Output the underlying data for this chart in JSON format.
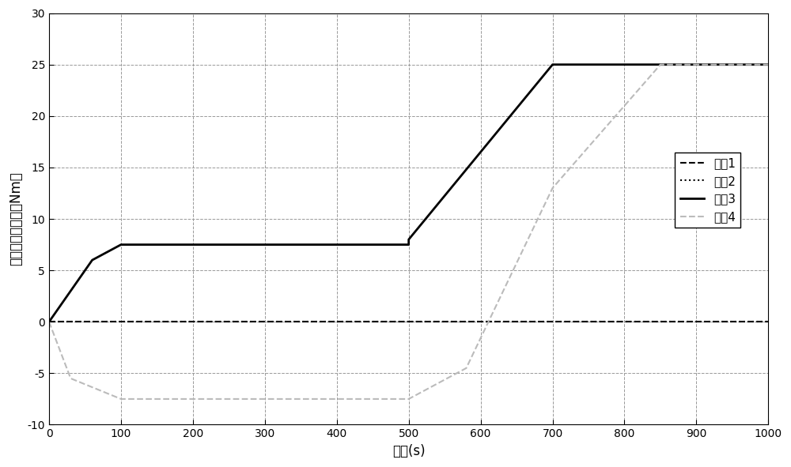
{
  "title": "",
  "xlabel": "时间(s)",
  "ylabel": "各飞轮的角动量（Nm）",
  "xlim": [
    0,
    1000
  ],
  "ylim": [
    -10,
    30
  ],
  "xticks": [
    0,
    100,
    200,
    300,
    400,
    500,
    600,
    700,
    800,
    900,
    1000
  ],
  "yticks": [
    -10,
    -5,
    0,
    5,
    10,
    15,
    20,
    25,
    30
  ],
  "background_color": "#ffffff",
  "grid_color": "#999999",
  "legend_labels": [
    "飞车1",
    "飞车2",
    "飞车3",
    "飞车4"
  ],
  "flywheel1": {
    "x": [
      0,
      1000
    ],
    "y": [
      0,
      0
    ],
    "color": "#000000",
    "linestyle": "--",
    "linewidth": 1.5
  },
  "flywheel2": {
    "x": [
      0,
      1000
    ],
    "y": [
      0,
      0
    ],
    "color": "#000000",
    "linestyle": ":",
    "linewidth": 1.5
  },
  "flywheel3": {
    "x": [
      0,
      60,
      100,
      500,
      500,
      600,
      700,
      1000
    ],
    "y": [
      0,
      6.0,
      7.5,
      7.5,
      8.0,
      16.5,
      25,
      25
    ],
    "color": "#000000",
    "linestyle": "-",
    "linewidth": 2.0
  },
  "flywheel4": {
    "x": [
      0,
      30,
      100,
      500,
      500,
      580,
      700,
      850,
      1000
    ],
    "y": [
      0,
      -5.5,
      -7.5,
      -7.5,
      -7.5,
      -4.5,
      13.0,
      25,
      25
    ],
    "color": "#bbbbbb",
    "linestyle": "--",
    "linewidth": 1.5
  }
}
